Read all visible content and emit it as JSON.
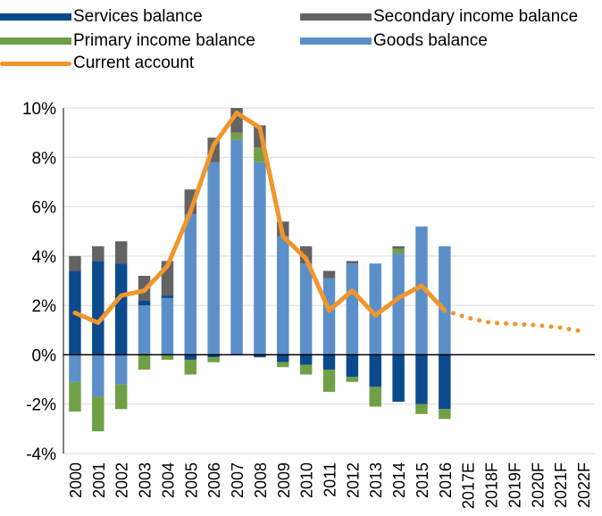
{
  "chart_data": {
    "type": "bar",
    "categories": [
      "2000",
      "2001",
      "2002",
      "2003",
      "2004",
      "2005",
      "2006",
      "2007",
      "2008",
      "2009",
      "2010",
      "2011",
      "2012",
      "2013",
      "2014",
      "2015",
      "2016",
      "2017E",
      "2018F",
      "2019F",
      "2020F",
      "2021F",
      "2022F"
    ],
    "ylim": [
      -4,
      10
    ],
    "yticks": [
      -4,
      -2,
      0,
      2,
      4,
      6,
      8,
      10
    ],
    "ytick_labels": [
      "-4%",
      "-2%",
      "0%",
      "2%",
      "4%",
      "6%",
      "8%",
      "10%"
    ],
    "series": [
      {
        "name": "Goods balance",
        "color": "#5b8fc9",
        "values": [
          -1.1,
          -1.7,
          -1.2,
          2.0,
          2.3,
          5.7,
          7.8,
          8.7,
          7.8,
          4.8,
          3.7,
          3.1,
          3.7,
          3.7,
          4.1,
          5.2,
          4.4,
          null,
          null,
          null,
          null,
          null,
          null
        ]
      },
      {
        "name": "Services balance",
        "color": "#0b4a8d",
        "values": [
          3.4,
          3.8,
          3.7,
          0.2,
          0.1,
          -0.2,
          -0.1,
          0.0,
          -0.1,
          -0.3,
          -0.4,
          -0.6,
          -0.9,
          -1.3,
          -1.9,
          -2.0,
          -2.2,
          null,
          null,
          null,
          null,
          null,
          null
        ]
      },
      {
        "name": "Primary income balance",
        "color": "#70a046",
        "values": [
          -1.2,
          -1.4,
          -1.0,
          -0.6,
          -0.2,
          -0.6,
          -0.2,
          0.3,
          0.6,
          -0.2,
          -0.4,
          -0.9,
          -0.2,
          -0.8,
          0.2,
          -0.4,
          -0.4,
          null,
          null,
          null,
          null,
          null,
          null
        ]
      },
      {
        "name": "Secondary income balance",
        "color": "#636363",
        "values": [
          0.6,
          0.6,
          0.9,
          1.0,
          1.4,
          1.0,
          1.0,
          1.0,
          0.9,
          0.6,
          0.7,
          0.3,
          0.1,
          0.0,
          0.1,
          0.0,
          0.0,
          null,
          null,
          null,
          null,
          null,
          null
        ]
      },
      {
        "name": "Current account",
        "color": "#f0962c",
        "kind": "line",
        "values": [
          1.7,
          1.3,
          2.4,
          2.6,
          3.6,
          5.8,
          8.5,
          9.8,
          9.2,
          4.8,
          3.9,
          1.8,
          2.6,
          1.6,
          2.3,
          2.8,
          1.8,
          1.5,
          1.3,
          1.25,
          1.2,
          1.1,
          0.95
        ],
        "forecast_from_index": 16
      }
    ],
    "legend_position": "top",
    "grid": "horizontal"
  },
  "legend": [
    {
      "label": "Services balance",
      "color": "#0b4a8d",
      "kind": "bar"
    },
    {
      "label": "Secondary income balance",
      "color": "#636363",
      "kind": "bar"
    },
    {
      "label": "Primary income balance",
      "color": "#70a046",
      "kind": "bar"
    },
    {
      "label": "Goods balance",
      "color": "#5b8fc9",
      "kind": "bar"
    },
    {
      "label": "Current account",
      "color": "#f0962c",
      "kind": "line"
    }
  ]
}
